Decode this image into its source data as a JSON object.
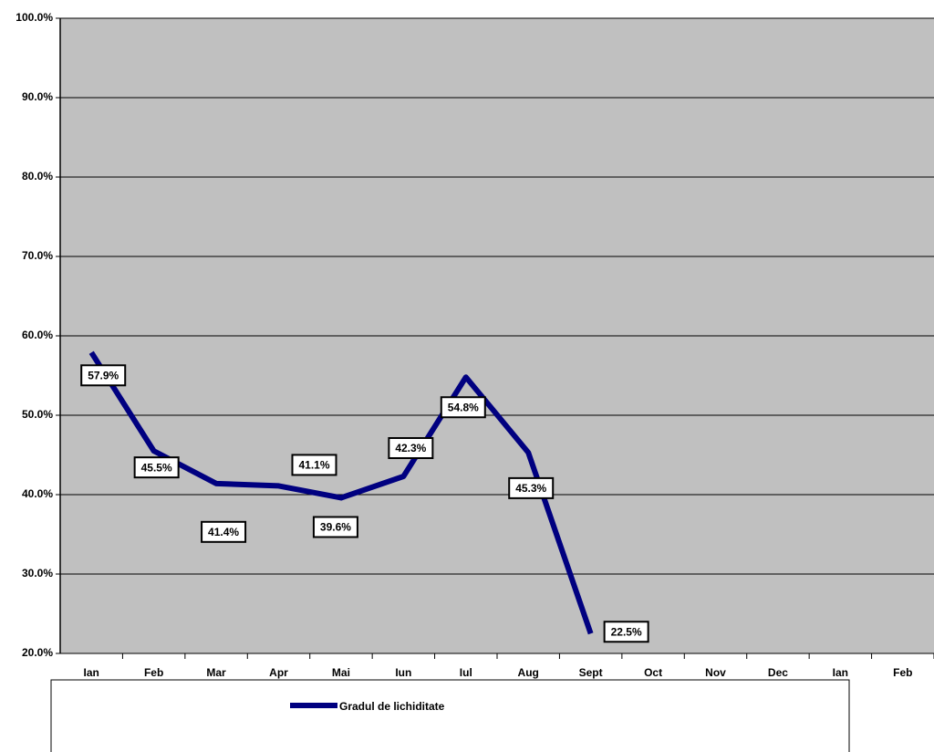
{
  "chart_data": {
    "type": "line",
    "categories": [
      "Ian",
      "Feb",
      "Mar",
      "Apr",
      "Mai",
      "Iun",
      "Iul",
      "Aug",
      "Sept",
      "Oct",
      "Nov",
      "Dec",
      "Ian",
      "Feb"
    ],
    "series": [
      {
        "name": "Gradul de lichiditate",
        "color": "#000080",
        "values": [
          57.9,
          45.5,
          41.4,
          41.1,
          39.6,
          42.3,
          54.8,
          45.3,
          22.5,
          null,
          null,
          null,
          null,
          null
        ],
        "value_labels": [
          "57.9%",
          "45.5%",
          "41.4%",
          "41.1%",
          "39.6%",
          "42.3%",
          "54.8%",
          "45.3%",
          "22.5%",
          null,
          null,
          null,
          null,
          null
        ]
      }
    ],
    "ylim": [
      20,
      100
    ],
    "yticks": [
      {
        "value": 20,
        "label": "20.0%"
      },
      {
        "value": 30,
        "label": "30.0%"
      },
      {
        "value": 40,
        "label": "40.0%"
      },
      {
        "value": 50,
        "label": "50.0%"
      },
      {
        "value": 60,
        "label": "60.0%"
      },
      {
        "value": 70,
        "label": "70.0%"
      },
      {
        "value": 80,
        "label": "80.0%"
      },
      {
        "value": 90,
        "label": "90.0%"
      },
      {
        "value": 100,
        "label": "100.0%"
      }
    ],
    "grid": true,
    "legend": "bottom"
  }
}
